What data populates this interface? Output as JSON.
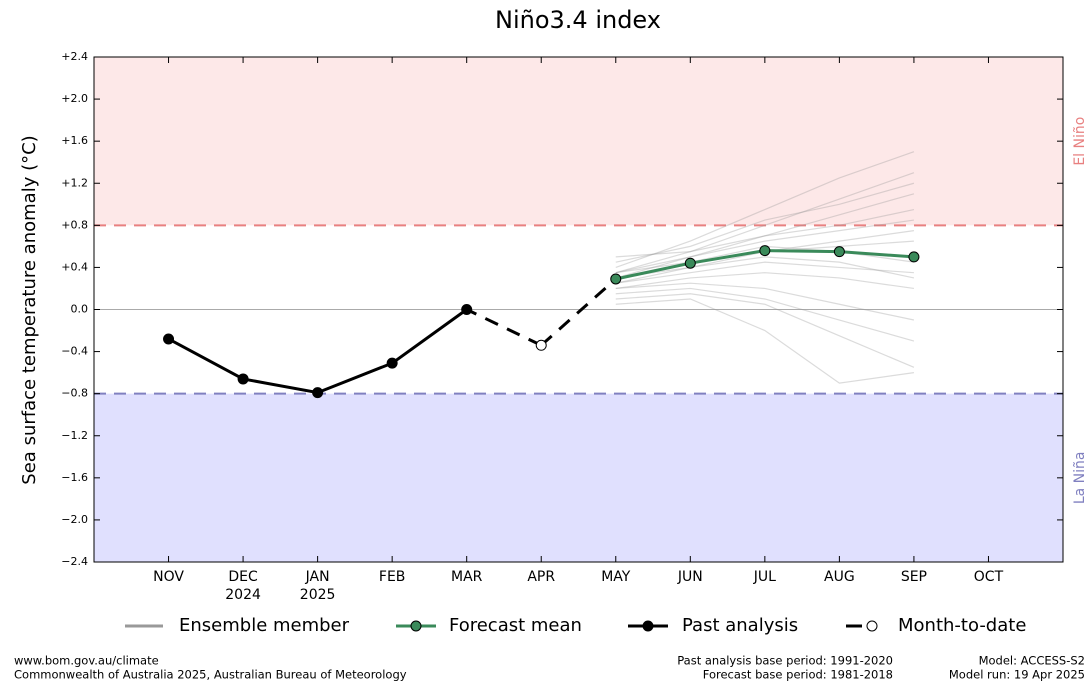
{
  "chart_data": {
    "type": "line",
    "title": "Niño3.4 index",
    "y_label": "Sea surface temperature anomaly (°C)",
    "categories": [
      "NOV",
      "DEC",
      "JAN",
      "FEB",
      "MAR",
      "APR",
      "MAY",
      "JUN",
      "JUL",
      "AUG",
      "SEP",
      "OCT"
    ],
    "year_labels": [
      null,
      "2024",
      "2025",
      null,
      null,
      null,
      null,
      null,
      null,
      null,
      null,
      null
    ],
    "ylim": [
      -2.4,
      2.4
    ],
    "yticks": [
      {
        "value": -2.4,
        "label": "−2.4"
      },
      {
        "value": -2.0,
        "label": "−2.0"
      },
      {
        "value": -1.6,
        "label": "−1.6"
      },
      {
        "value": -1.2,
        "label": "−1.2"
      },
      {
        "value": -0.8,
        "label": "−0.8"
      },
      {
        "value": -0.4,
        "label": "−0.4"
      },
      {
        "value": 0,
        "label": "0.0"
      },
      {
        "value": 0.4,
        "label": "+0.4"
      },
      {
        "value": 0.8,
        "label": "+0.8"
      },
      {
        "value": 1.2,
        "label": "+1.2"
      },
      {
        "value": 1.6,
        "label": "+1.6"
      },
      {
        "value": 2.0,
        "label": "+2.0"
      },
      {
        "value": 2.4,
        "label": "+2.4"
      }
    ],
    "el_nino": {
      "label": "El Niño",
      "threshold": 0.8,
      "color": "#e88080",
      "fill": "#fde8e8"
    },
    "la_nina": {
      "label": "La Niña",
      "threshold": -0.8,
      "color": "#8080c0",
      "fill": "#e0e0fe"
    },
    "ensemble": {
      "name": "Ensemble member",
      "color": "#999999",
      "members": [
        [
          null,
          null,
          null,
          null,
          null,
          null,
          0.35,
          0.55,
          0.8,
          1.05,
          1.3,
          null
        ],
        [
          null,
          null,
          null,
          null,
          null,
          null,
          0.3,
          0.5,
          0.7,
          0.9,
          1.1,
          null
        ],
        [
          null,
          null,
          null,
          null,
          null,
          null,
          0.25,
          0.4,
          0.55,
          0.6,
          0.65,
          null
        ],
        [
          null,
          null,
          null,
          null,
          null,
          null,
          0.2,
          0.3,
          0.35,
          0.3,
          0.2,
          null
        ],
        [
          null,
          null,
          null,
          null,
          null,
          null,
          0.15,
          0.2,
          0.1,
          -0.1,
          -0.3,
          null
        ],
        [
          null,
          null,
          null,
          null,
          null,
          null,
          0.4,
          0.65,
          0.95,
          1.25,
          1.5,
          null
        ],
        [
          null,
          null,
          null,
          null,
          null,
          null,
          0.3,
          0.45,
          0.6,
          0.55,
          0.45,
          null
        ],
        [
          null,
          null,
          null,
          null,
          null,
          null,
          0.1,
          0.15,
          0.05,
          -0.25,
          -0.55,
          null
        ],
        [
          null,
          null,
          null,
          null,
          null,
          null,
          0.35,
          0.5,
          0.65,
          0.75,
          0.85,
          null
        ],
        [
          null,
          null,
          null,
          null,
          null,
          null,
          0.25,
          0.35,
          0.45,
          0.4,
          0.35,
          null
        ],
        [
          null,
          null,
          null,
          null,
          null,
          null,
          0.45,
          0.6,
          0.85,
          1.0,
          1.2,
          null
        ],
        [
          null,
          null,
          null,
          null,
          null,
          null,
          0.2,
          0.25,
          0.2,
          0.05,
          -0.1,
          null
        ],
        [
          null,
          null,
          null,
          null,
          null,
          null,
          0.3,
          0.4,
          0.5,
          0.45,
          0.3,
          null
        ],
        [
          null,
          null,
          null,
          null,
          null,
          null,
          0.05,
          0.1,
          -0.2,
          -0.7,
          -0.6,
          null
        ],
        [
          null,
          null,
          null,
          null,
          null,
          null,
          0.5,
          0.55,
          0.7,
          0.8,
          0.95,
          null
        ],
        [
          null,
          null,
          null,
          null,
          null,
          null,
          0.35,
          0.45,
          0.55,
          0.65,
          0.75,
          null
        ]
      ]
    },
    "series": [
      {
        "name": "Forecast mean",
        "color": "#3a8a5a",
        "values": [
          null,
          null,
          null,
          null,
          null,
          null,
          0.29,
          0.44,
          0.56,
          0.55,
          0.5,
          null
        ]
      },
      {
        "name": "Past analysis",
        "color": "#000000",
        "values": [
          -0.28,
          -0.66,
          -0.79,
          -0.51,
          0.0,
          null,
          null,
          null,
          null,
          null,
          null,
          null
        ]
      },
      {
        "name": "Month-to-date",
        "color": "#000000",
        "dashed": true,
        "open_marker": true,
        "values": [
          null,
          null,
          null,
          null,
          null,
          -0.34,
          null,
          null,
          null,
          null,
          null,
          null
        ]
      }
    ],
    "footer": {
      "left": [
        "www.bom.gov.au/climate",
        "Commonwealth of Australia 2025, Australian Bureau of Meteorology"
      ],
      "middle": [
        "Past analysis base period: 1991-2020",
        "Forecast base period: 1981-2018"
      ],
      "right": [
        "Model: ACCESS-S2",
        "Model run: 19 Apr 2025"
      ]
    }
  }
}
